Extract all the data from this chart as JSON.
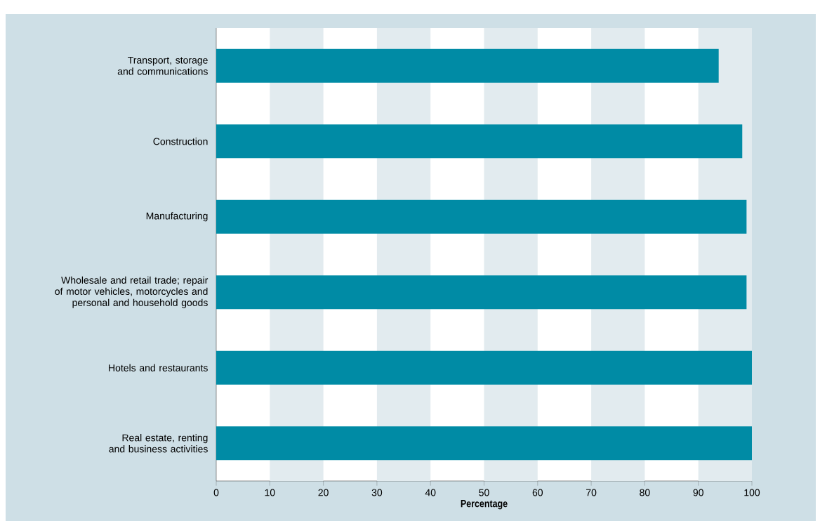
{
  "chart_data": {
    "type": "bar",
    "orientation": "horizontal",
    "xlabel": "Percentage",
    "categories": [
      "Transport, storage and communications",
      "Construction",
      "Manufacturing",
      "Wholesale and retail trade; repair of motor vehicles, motorcycles and personal and household goods",
      "Hotels and restaurants",
      "Real estate, renting and business activities"
    ],
    "values": [
      93.8,
      98.2,
      99.0,
      99.0,
      100,
      100
    ],
    "color": "#008ba5",
    "xlim": [
      0,
      100
    ],
    "xticks": [
      0,
      10,
      20,
      30,
      40,
      50,
      60,
      70,
      80,
      90,
      100
    ],
    "bands": [
      {
        "axis": "x",
        "from": 10,
        "to": 20,
        "color": "#e2ebef"
      },
      {
        "axis": "x",
        "from": 30,
        "to": 40,
        "color": "#e2ebef"
      },
      {
        "axis": "x",
        "from": 50,
        "to": 60,
        "color": "#e2ebef"
      },
      {
        "axis": "x",
        "from": 70,
        "to": 80,
        "color": "#e2ebef"
      },
      {
        "axis": "x",
        "from": 90,
        "to": 100,
        "color": "#e2ebef"
      }
    ]
  }
}
